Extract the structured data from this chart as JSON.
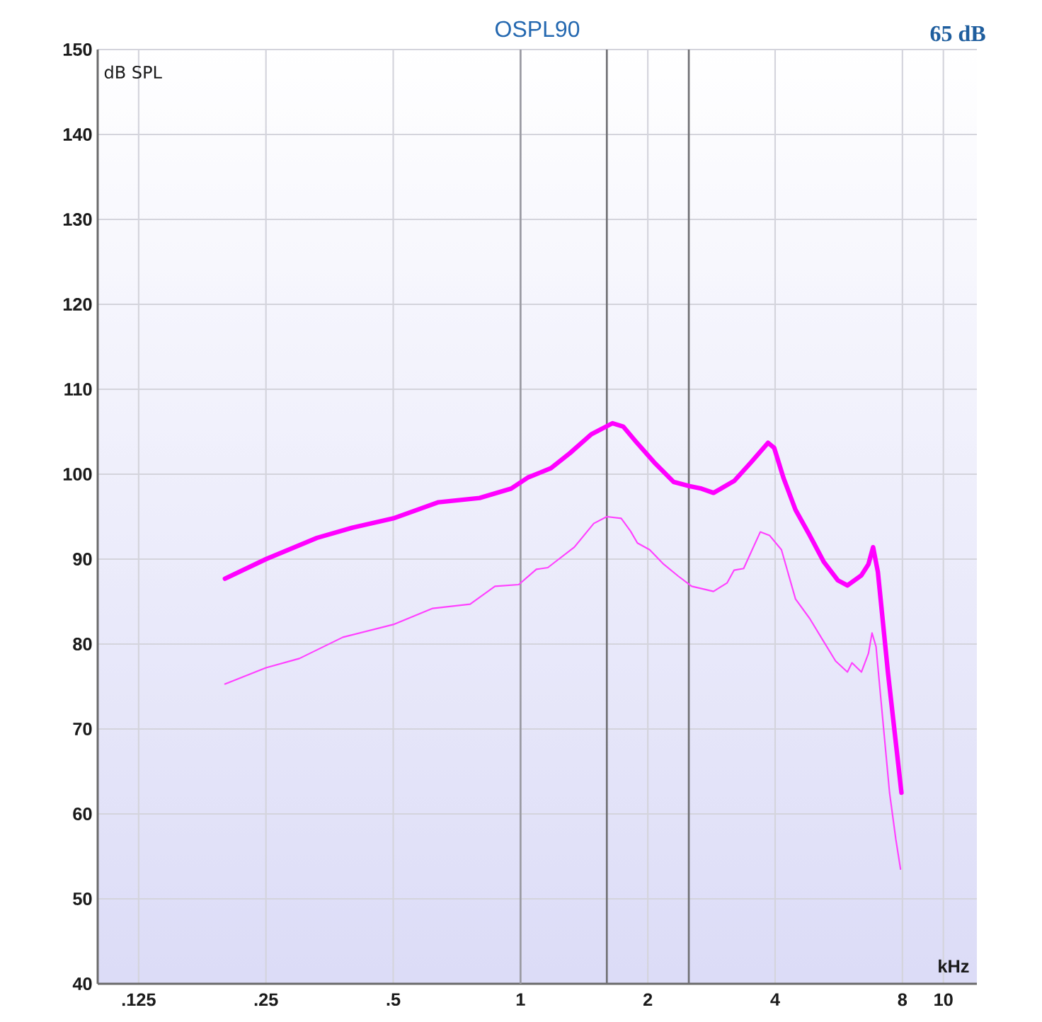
{
  "chart_data": {
    "type": "line",
    "title": "OSPL90",
    "xlabel": "kHz",
    "ylabel": "dB SPL",
    "annotations": [
      "65 dB"
    ],
    "log": "x",
    "grid": true,
    "xlim": [
      0.1,
      12
    ],
    "ylim": [
      40,
      150
    ],
    "xticks": [
      {
        "value": 0.125,
        "label": ".125"
      },
      {
        "value": 0.25,
        "label": ".25"
      },
      {
        "value": 0.5,
        "label": ".5"
      },
      1,
      2,
      4,
      8,
      10
    ],
    "yticks": [
      40,
      50,
      60,
      70,
      80,
      90,
      100,
      110,
      120,
      130,
      140,
      150
    ],
    "ref_lines": [
      {
        "axis": "x",
        "value": 1,
        "color": "#9a9aa2"
      },
      {
        "axis": "x",
        "value": 1.6,
        "color": "#707074"
      },
      {
        "axis": "x",
        "value": 2.5,
        "color": "#707074"
      }
    ],
    "series": [
      {
        "color": "#ff00ff",
        "x": [
          0.2,
          0.25,
          0.33,
          0.4,
          0.5,
          0.64,
          0.8,
          0.95,
          1.04,
          1.18,
          1.31,
          1.47,
          1.65,
          1.75,
          1.87,
          2.07,
          2.3,
          2.51,
          2.68,
          2.86,
          3.2,
          3.51,
          3.85,
          3.98,
          4.19,
          4.47,
          4.83,
          5.21,
          5.63,
          5.93,
          6.4,
          6.65,
          6.82,
          7.0,
          7.4,
          7.96
        ],
        "values": [
          87.7,
          90.0,
          92.5,
          93.7,
          94.8,
          96.7,
          97.2,
          98.3,
          99.6,
          100.7,
          102.5,
          104.7,
          106.0,
          105.6,
          103.9,
          101.4,
          99.1,
          98.6,
          98.3,
          97.8,
          99.2,
          101.4,
          103.7,
          103.1,
          99.5,
          95.8,
          92.8,
          89.7,
          87.5,
          86.9,
          88.1,
          89.4,
          91.4,
          88.5,
          76.5,
          62.5
        ]
      },
      {
        "color": "#ff40ff",
        "x": [
          0.2,
          0.25,
          0.3,
          0.38,
          0.5,
          0.62,
          0.76,
          0.87,
          0.99,
          1.09,
          1.16,
          1.34,
          1.49,
          1.6,
          1.73,
          1.82,
          1.89,
          2.02,
          2.18,
          2.36,
          2.54,
          2.86,
          3.08,
          3.2,
          3.37,
          3.69,
          3.88,
          4.14,
          4.47,
          4.83,
          5.21,
          5.56,
          5.93,
          6.08,
          6.4,
          6.65,
          6.78,
          6.93,
          7.18,
          7.46,
          7.72,
          7.92
        ],
        "values": [
          75.3,
          77.2,
          78.3,
          80.8,
          82.3,
          84.2,
          84.7,
          86.8,
          87.0,
          88.8,
          89.0,
          91.4,
          94.2,
          95.0,
          94.8,
          93.3,
          91.9,
          91.1,
          89.4,
          88.0,
          86.8,
          86.2,
          87.2,
          88.7,
          88.9,
          93.2,
          92.8,
          91.1,
          85.3,
          83.0,
          80.3,
          78.0,
          76.7,
          77.8,
          76.7,
          78.9,
          81.3,
          79.7,
          71.4,
          62.5,
          57.0,
          53.5
        ]
      }
    ]
  }
}
